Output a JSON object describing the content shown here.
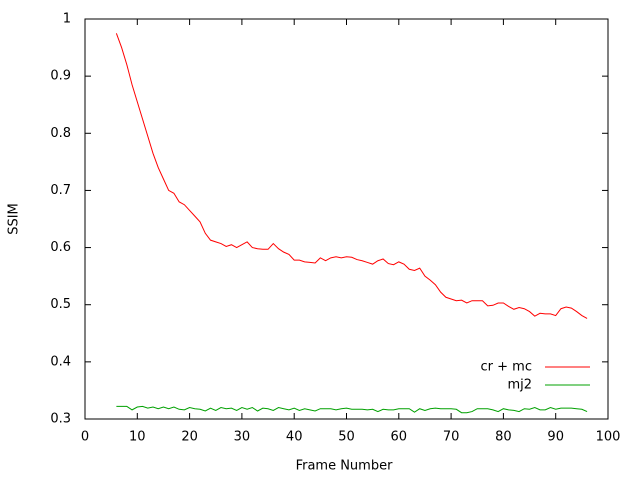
{
  "chart_data": {
    "type": "line",
    "xlabel": "Frame Number",
    "ylabel": "SSIM",
    "x": [
      6,
      7,
      8,
      9,
      10,
      11,
      12,
      13,
      14,
      15,
      16,
      17,
      18,
      19,
      20,
      21,
      22,
      23,
      24,
      25,
      26,
      27,
      28,
      29,
      30,
      31,
      32,
      33,
      34,
      35,
      36,
      37,
      38,
      39,
      40,
      41,
      42,
      43,
      44,
      45,
      46,
      47,
      48,
      49,
      50,
      51,
      52,
      53,
      54,
      55,
      56,
      57,
      58,
      59,
      60,
      61,
      62,
      63,
      64,
      65,
      66,
      67,
      68,
      69,
      70,
      71,
      72,
      73,
      74,
      75,
      76,
      77,
      78,
      79,
      80,
      81,
      82,
      83,
      84,
      85,
      86,
      87,
      88,
      89,
      90,
      91,
      92,
      93,
      94,
      95,
      96
    ],
    "series": [
      {
        "name": "cr + mc",
        "color": "#ff0000",
        "values": [
          0.975,
          0.95,
          0.92,
          0.885,
          0.855,
          0.825,
          0.795,
          0.765,
          0.74,
          0.72,
          0.7,
          0.695,
          0.68,
          0.675,
          0.665,
          0.655,
          0.645,
          0.625,
          0.613,
          0.61,
          0.607,
          0.602,
          0.605,
          0.6,
          0.605,
          0.61,
          0.6,
          0.598,
          0.597,
          0.597,
          0.607,
          0.598,
          0.592,
          0.588,
          0.578,
          0.578,
          0.575,
          0.574,
          0.573,
          0.582,
          0.577,
          0.582,
          0.584,
          0.582,
          0.584,
          0.583,
          0.579,
          0.577,
          0.574,
          0.571,
          0.577,
          0.58,
          0.572,
          0.57,
          0.575,
          0.571,
          0.562,
          0.56,
          0.564,
          0.55,
          0.543,
          0.535,
          0.522,
          0.513,
          0.51,
          0.507,
          0.508,
          0.503,
          0.507,
          0.507,
          0.507,
          0.498,
          0.499,
          0.503,
          0.503,
          0.497,
          0.492,
          0.495,
          0.493,
          0.488,
          0.48,
          0.485,
          0.484,
          0.484,
          0.481,
          0.493,
          0.496,
          0.494,
          0.488,
          0.481,
          0.476
        ]
      },
      {
        "name": "mj2",
        "color": "#00a000",
        "values": [
          0.322,
          0.322,
          0.322,
          0.316,
          0.321,
          0.322,
          0.319,
          0.321,
          0.318,
          0.321,
          0.318,
          0.321,
          0.317,
          0.316,
          0.32,
          0.318,
          0.317,
          0.314,
          0.319,
          0.315,
          0.32,
          0.318,
          0.319,
          0.315,
          0.32,
          0.317,
          0.32,
          0.314,
          0.319,
          0.318,
          0.315,
          0.32,
          0.318,
          0.316,
          0.319,
          0.315,
          0.318,
          0.316,
          0.314,
          0.318,
          0.318,
          0.318,
          0.316,
          0.318,
          0.319,
          0.317,
          0.317,
          0.317,
          0.316,
          0.317,
          0.313,
          0.317,
          0.316,
          0.316,
          0.318,
          0.318,
          0.318,
          0.312,
          0.318,
          0.315,
          0.318,
          0.319,
          0.318,
          0.318,
          0.318,
          0.317,
          0.311,
          0.311,
          0.313,
          0.318,
          0.318,
          0.318,
          0.316,
          0.313,
          0.318,
          0.316,
          0.315,
          0.313,
          0.318,
          0.317,
          0.32,
          0.316,
          0.316,
          0.32,
          0.317,
          0.319,
          0.319,
          0.319,
          0.318,
          0.317,
          0.313
        ]
      }
    ],
    "xlim": [
      0,
      100
    ],
    "xticks": [
      0,
      10,
      20,
      30,
      40,
      50,
      60,
      70,
      80,
      90,
      100
    ],
    "ylim": [
      0.3,
      1
    ],
    "yticks": [
      0.3,
      0.4,
      0.5,
      0.6,
      0.7,
      0.8,
      0.9,
      1
    ],
    "grid": false,
    "legend": "lower right"
  }
}
